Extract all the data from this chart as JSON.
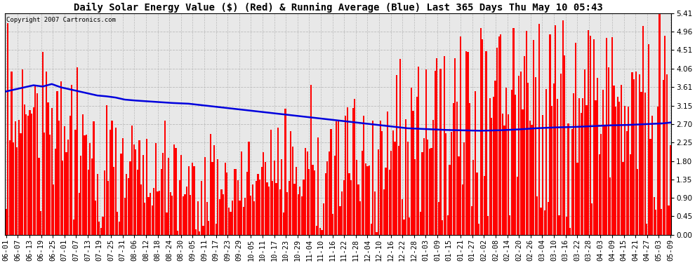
{
  "title": "Daily Solar Energy Value ($) (Red) & Running Average (Blue) Last 365 Days Thu May 10 05:43",
  "copyright": "Copyright 2007 Cartronics.com",
  "ylim": [
    0.0,
    5.41
  ],
  "yticks": [
    0.0,
    0.45,
    0.9,
    1.35,
    1.8,
    2.25,
    2.7,
    3.15,
    3.61,
    4.06,
    4.51,
    4.96,
    5.41
  ],
  "bar_color": "#FF0000",
  "line_color": "#0000DD",
  "bg_color": "#FFFFFF",
  "plot_bg_color": "#E8E8E8",
  "grid_color": "#BBBBBB",
  "title_fontsize": 10,
  "copyright_fontsize": 6.5,
  "tick_fontsize": 7.5,
  "bar_width": 0.85,
  "x_labels": [
    "06-01",
    "06-07",
    "06-13",
    "06-19",
    "06-25",
    "07-01",
    "07-07",
    "07-13",
    "07-19",
    "07-25",
    "07-31",
    "08-06",
    "08-12",
    "08-18",
    "08-24",
    "08-30",
    "09-05",
    "09-11",
    "09-17",
    "09-23",
    "09-29",
    "10-05",
    "10-11",
    "10-17",
    "10-23",
    "10-29",
    "11-04",
    "11-10",
    "11-16",
    "11-22",
    "11-28",
    "12-04",
    "12-10",
    "12-16",
    "12-22",
    "12-28",
    "01-03",
    "01-09",
    "01-15",
    "01-21",
    "01-27",
    "02-02",
    "02-08",
    "02-14",
    "02-20",
    "02-26",
    "03-04",
    "03-10",
    "03-16",
    "03-22",
    "03-28",
    "04-03",
    "04-09",
    "04-15",
    "04-21",
    "04-27",
    "05-03",
    "05-09"
  ],
  "avg_curve_points": [
    [
      0,
      3.5
    ],
    [
      5,
      3.55
    ],
    [
      15,
      3.65
    ],
    [
      20,
      3.62
    ],
    [
      25,
      3.68
    ],
    [
      30,
      3.6
    ],
    [
      35,
      3.55
    ],
    [
      40,
      3.5
    ],
    [
      45,
      3.45
    ],
    [
      50,
      3.4
    ],
    [
      55,
      3.38
    ],
    [
      60,
      3.35
    ],
    [
      65,
      3.3
    ],
    [
      70,
      3.28
    ],
    [
      80,
      3.25
    ],
    [
      90,
      3.22
    ],
    [
      100,
      3.2
    ],
    [
      110,
      3.15
    ],
    [
      120,
      3.1
    ],
    [
      130,
      3.05
    ],
    [
      140,
      3.0
    ],
    [
      150,
      2.95
    ],
    [
      160,
      2.9
    ],
    [
      170,
      2.85
    ],
    [
      180,
      2.8
    ],
    [
      190,
      2.75
    ],
    [
      200,
      2.7
    ],
    [
      210,
      2.65
    ],
    [
      220,
      2.6
    ],
    [
      230,
      2.58
    ],
    [
      240,
      2.56
    ],
    [
      250,
      2.55
    ],
    [
      260,
      2.54
    ],
    [
      270,
      2.55
    ],
    [
      280,
      2.57
    ],
    [
      290,
      2.6
    ],
    [
      300,
      2.62
    ],
    [
      310,
      2.63
    ],
    [
      320,
      2.65
    ],
    [
      330,
      2.67
    ],
    [
      340,
      2.68
    ],
    [
      350,
      2.7
    ],
    [
      360,
      2.72
    ],
    [
      364,
      2.74
    ]
  ]
}
